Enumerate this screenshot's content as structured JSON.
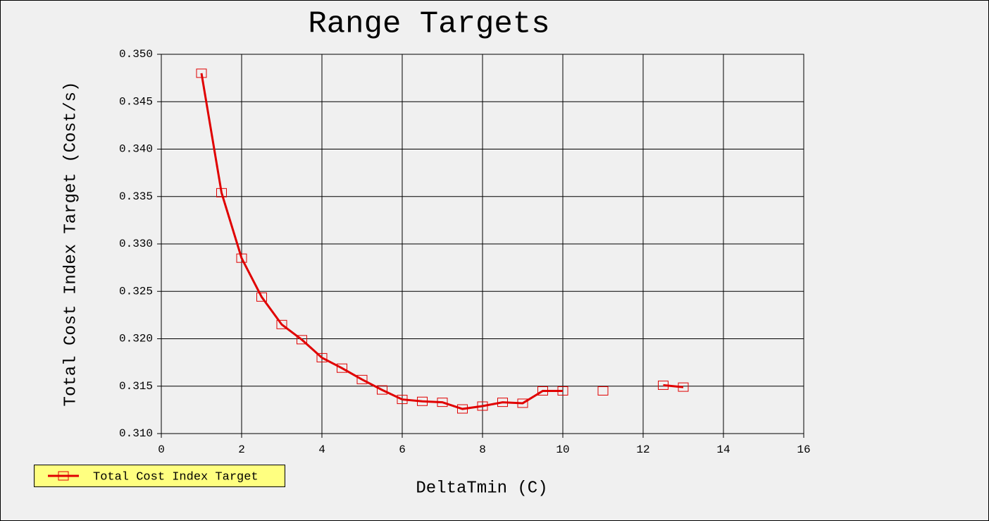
{
  "chart_data": {
    "type": "line",
    "title": "Range Targets",
    "x_label": "DeltaTmin (C)",
    "y_label": "Total Cost Index Target (Cost/s)",
    "x": [
      1,
      1.5,
      2,
      2.5,
      3,
      3.5,
      4,
      4.5,
      5,
      5.5,
      6,
      6.5,
      7,
      7.5,
      8,
      8.5,
      9,
      9.5,
      10,
      10.5,
      11,
      11.5,
      12,
      12.5,
      13
    ],
    "series": [
      {
        "name": "Total Cost Index Target",
        "color": "#e00000",
        "values": [
          0.348,
          0.3354,
          0.3285,
          0.3244,
          0.3215,
          0.3199,
          0.318,
          0.3169,
          0.3157,
          0.3146,
          0.3136,
          0.3134,
          0.3133,
          0.3126,
          0.3129,
          0.3133,
          0.3132,
          0.3145,
          0.3145,
          null,
          0.3145,
          null,
          null,
          0.3151,
          0.3149
        ]
      }
    ],
    "xlim": [
      0,
      16
    ],
    "xticks": [
      0,
      2,
      4,
      6,
      8,
      10,
      12,
      14,
      16
    ],
    "ylim": [
      0.31,
      0.35
    ],
    "yticks": [
      {
        "value": 0.31,
        "label": "0.310"
      },
      {
        "value": 0.315,
        "label": "0.315"
      },
      {
        "value": 0.32,
        "label": "0.320"
      },
      {
        "value": 0.325,
        "label": "0.325"
      },
      {
        "value": 0.33,
        "label": "0.330"
      },
      {
        "value": 0.335,
        "label": "0.335"
      },
      {
        "value": 0.34,
        "label": "0.340"
      },
      {
        "value": 0.345,
        "label": "0.345"
      },
      {
        "value": 0.35,
        "label": "0.350"
      }
    ],
    "grid": true,
    "legend": "bottom-left"
  }
}
